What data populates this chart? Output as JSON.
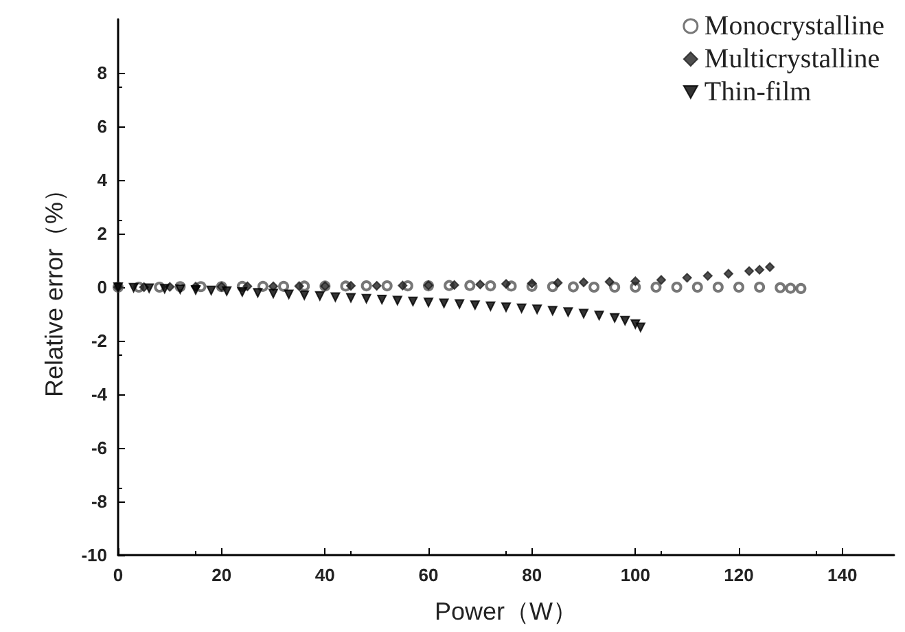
{
  "chart_data": {
    "type": "scatter",
    "xlabel": "Power（W）",
    "ylabel": "Relative error（%）",
    "xlim": [
      0,
      150
    ],
    "xticks": [
      0,
      20,
      40,
      60,
      80,
      100,
      120,
      140
    ],
    "ylim": [
      -10,
      10
    ],
    "yticks": [
      -10,
      -8,
      -6,
      -4,
      -2,
      0,
      2,
      4,
      6,
      8
    ],
    "grid": false,
    "legend": "top right",
    "series": [
      {
        "name": "Monocrystalline",
        "color": "#555555",
        "marker": "circle",
        "x": [
          0,
          4,
          8,
          12,
          16,
          20,
          24,
          28,
          32,
          36,
          40,
          44,
          48,
          52,
          56,
          60,
          64,
          68,
          72,
          76,
          80,
          84,
          88,
          92,
          96,
          100,
          104,
          108,
          112,
          116,
          120,
          124,
          128,
          130,
          132
        ],
        "values": [
          0,
          0,
          0,
          0.02,
          0.02,
          0.02,
          0.03,
          0.03,
          0.03,
          0.04,
          0.04,
          0.04,
          0.05,
          0.05,
          0.05,
          0.05,
          0.06,
          0.06,
          0.05,
          0.04,
          0.03,
          0.02,
          0.01,
          0,
          0,
          0,
          0,
          0,
          0,
          0,
          0,
          0,
          -0.02,
          -0.04,
          -0.05
        ]
      },
      {
        "name": "Multicrystalline",
        "color": "#222222",
        "marker": "diamond",
        "x": [
          0,
          5,
          10,
          15,
          20,
          25,
          30,
          35,
          40,
          45,
          50,
          55,
          60,
          65,
          70,
          75,
          80,
          85,
          90,
          95,
          100,
          105,
          110,
          114,
          118,
          122,
          124,
          126
        ],
        "values": [
          0,
          0,
          0.01,
          0.02,
          0.02,
          0.03,
          0.03,
          0.04,
          0.04,
          0.05,
          0.05,
          0.06,
          0.07,
          0.08,
          0.1,
          0.12,
          0.14,
          0.16,
          0.18,
          0.2,
          0.22,
          0.27,
          0.35,
          0.42,
          0.5,
          0.6,
          0.65,
          0.75
        ]
      },
      {
        "name": "Thin-film",
        "color": "#000000",
        "marker": "triangle",
        "x": [
          0,
          3,
          6,
          9,
          12,
          15,
          18,
          21,
          24,
          27,
          30,
          33,
          36,
          39,
          42,
          45,
          48,
          51,
          54,
          57,
          60,
          63,
          66,
          69,
          72,
          75,
          78,
          81,
          84,
          87,
          90,
          93,
          96,
          98,
          100,
          101
        ],
        "values": [
          0,
          -0.02,
          -0.04,
          -0.06,
          -0.08,
          -0.1,
          -0.12,
          -0.15,
          -0.18,
          -0.21,
          -0.24,
          -0.27,
          -0.3,
          -0.33,
          -0.37,
          -0.4,
          -0.43,
          -0.46,
          -0.5,
          -0.53,
          -0.57,
          -0.6,
          -0.63,
          -0.67,
          -0.71,
          -0.75,
          -0.79,
          -0.83,
          -0.88,
          -0.93,
          -0.99,
          -1.06,
          -1.15,
          -1.25,
          -1.38,
          -1.5
        ]
      }
    ]
  }
}
